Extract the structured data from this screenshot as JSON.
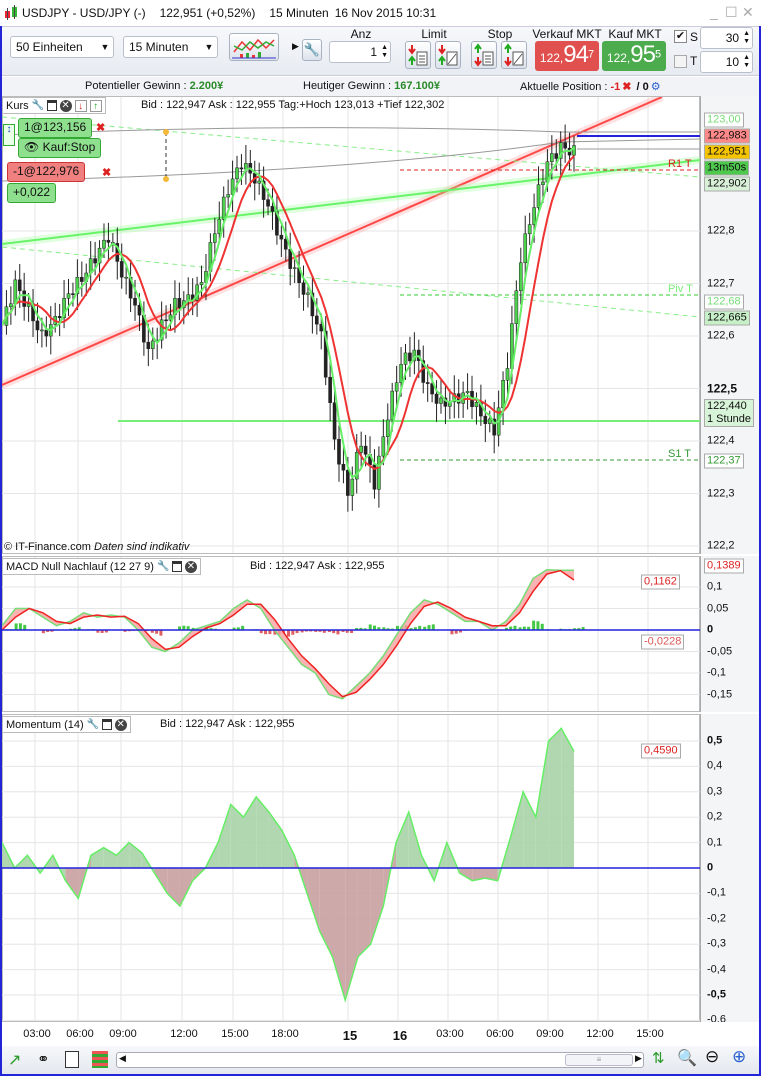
{
  "title": {
    "symbol": "USDJPY - USD/JPY (-)",
    "price": "122,951 (+0,52%)",
    "interval": "15 Minuten",
    "datetime": "16 Nov 2015 10:31"
  },
  "window_controls": {
    "minimize": "_",
    "maximize": "☐",
    "close": "✕"
  },
  "toolbar": {
    "units_select": "50 Einheiten",
    "interval_select": "15 Minuten",
    "anz_label": "Anz",
    "anz_value": "1",
    "limit_label": "Limit",
    "stop_label": "Stop",
    "sell_label": "Verkauf MKT",
    "sell_prefix": "122,",
    "sell_big": "94",
    "sell_sup": "7",
    "buy_label": "Kauf MKT",
    "buy_prefix": "122,",
    "buy_big": "95",
    "buy_sup": "5",
    "s_label": "S",
    "s_checked": true,
    "s_value": "30",
    "t_label": "T",
    "t_checked": false,
    "t_value": "10",
    "sell_color": "#e0504f",
    "buy_color": "#4cab4c"
  },
  "info": {
    "pot_label": "Potentieller Gewinn : ",
    "pot_value": "2.200¥",
    "today_label": "Heutiger Gewinn : ",
    "today_value": "167.100¥",
    "pos_label": "Aktuelle Position : ",
    "pos_value": "-1",
    "pos_sep": " / 0"
  },
  "price_panel": {
    "name": "Kurs",
    "quote": "Bid : 122,947 Ask : 122,955 Tag:+Hoch 123,013 +Tief 122,302",
    "order_buy": "1@123,156",
    "order_buy_type": "Kauf:Stop",
    "order_sell": "-1@122,976",
    "order_pl": "+0,022",
    "copyright": "© IT-Finance.com",
    "disclaimer": "Daten sind indikativ",
    "pivots": {
      "r1": "R1 T",
      "piv": "Piv T",
      "s1": "S1 T"
    },
    "axis_ticks": [
      "122,8",
      "122,7",
      "122,6",
      "122,5",
      "122,4",
      "122,3",
      "122,2"
    ],
    "axis_boxes": {
      "top": "123,00",
      "ask": "122,983",
      "last": "122,951",
      "timer": "13m50s",
      "r1": "122,902",
      "piv": "122,68",
      "ma": "122,665",
      "line": "122,440",
      "line_label": "1 Stunde",
      "s1": "122,37"
    }
  },
  "macd_panel": {
    "name": "MACD Null Nachlauf (12 27 9)",
    "quote": "Bid : 122,947 Ask : 122,955",
    "axis_ticks": [
      "0,1",
      "0,05",
      "0",
      "-0,05",
      "-0,1",
      "-0,15"
    ],
    "box_macd": "0,1389",
    "box_signal": "0,1162",
    "box_hist": "-0,0228"
  },
  "momentum_panel": {
    "name": "Momentum (14)",
    "quote": "Bid : 122,947 Ask : 122,955",
    "axis_ticks": [
      "0,5",
      "0,4",
      "0,3",
      "0,2",
      "0,1",
      "0",
      "-0,1",
      "-0,2",
      "-0,3",
      "-0,4",
      "-0,5",
      "-0,6"
    ],
    "box_value": "0,4590"
  },
  "time_axis": [
    "03:00",
    "06:00",
    "09:00",
    "12:00",
    "15:00",
    "18:00",
    "15",
    "16",
    "03:00",
    "06:00",
    "09:00",
    "12:00",
    "15:00"
  ],
  "chart_data": [
    {
      "type": "candlestick",
      "name": "Kurs",
      "ylim": [
        122.2,
        123.0
      ],
      "close_samples": [
        122.62,
        122.7,
        122.65,
        122.6,
        122.63,
        122.68,
        122.71,
        122.75,
        122.79,
        122.72,
        122.66,
        122.57,
        122.62,
        122.66,
        122.67,
        122.7,
        122.8,
        122.88,
        122.93,
        122.9,
        122.85,
        122.78,
        122.72,
        122.67,
        122.6,
        122.4,
        122.3,
        122.4,
        122.32,
        122.45,
        122.55,
        122.57,
        122.5,
        122.47,
        122.48,
        122.49,
        122.45,
        122.42,
        122.55,
        122.75,
        122.85,
        122.93,
        122.96,
        122.951
      ]
    },
    {
      "type": "line",
      "name": "MACD Null Nachlauf (12 27 9)",
      "ylim": [
        -0.17,
        0.15
      ],
      "macd": [
        0.01,
        0.05,
        0.05,
        0.03,
        0.01,
        0.02,
        0.04,
        0.03,
        0.035,
        0.03,
        0.0,
        -0.04,
        -0.05,
        -0.03,
        0.0,
        0.01,
        0.02,
        0.05,
        0.07,
        0.05,
        0.0,
        -0.04,
        -0.08,
        -0.1,
        -0.15,
        -0.16,
        -0.13,
        -0.1,
        -0.06,
        -0.01,
        0.04,
        0.07,
        0.06,
        0.04,
        0.02,
        0.02,
        0.0,
        0.02,
        0.06,
        0.12,
        0.14,
        0.139,
        0.1389
      ],
      "signal": [
        0.0,
        0.03,
        0.05,
        0.04,
        0.02,
        0.015,
        0.03,
        0.035,
        0.03,
        0.032,
        0.015,
        -0.02,
        -0.045,
        -0.04,
        -0.015,
        0.005,
        0.015,
        0.035,
        0.06,
        0.06,
        0.025,
        -0.02,
        -0.06,
        -0.09,
        -0.125,
        -0.155,
        -0.145,
        -0.115,
        -0.08,
        -0.035,
        0.015,
        0.055,
        0.065,
        0.05,
        0.03,
        0.02,
        0.01,
        0.01,
        0.04,
        0.09,
        0.13,
        0.138,
        0.1162
      ]
    },
    {
      "type": "area",
      "name": "Momentum (14)",
      "ylim": [
        -0.62,
        0.55
      ],
      "values": [
        0.1,
        0.0,
        0.05,
        -0.02,
        0.05,
        -0.05,
        -0.12,
        0.05,
        0.08,
        0.05,
        0.1,
        0.06,
        -0.02,
        -0.1,
        -0.15,
        -0.05,
        0.0,
        0.1,
        0.25,
        0.2,
        0.28,
        0.22,
        0.15,
        0.05,
        -0.1,
        -0.25,
        -0.35,
        -0.52,
        -0.35,
        -0.3,
        -0.15,
        0.1,
        0.22,
        0.05,
        -0.05,
        0.1,
        -0.02,
        -0.05,
        -0.04,
        -0.05,
        0.12,
        0.3,
        0.2,
        0.5,
        0.55,
        0.459
      ]
    }
  ]
}
